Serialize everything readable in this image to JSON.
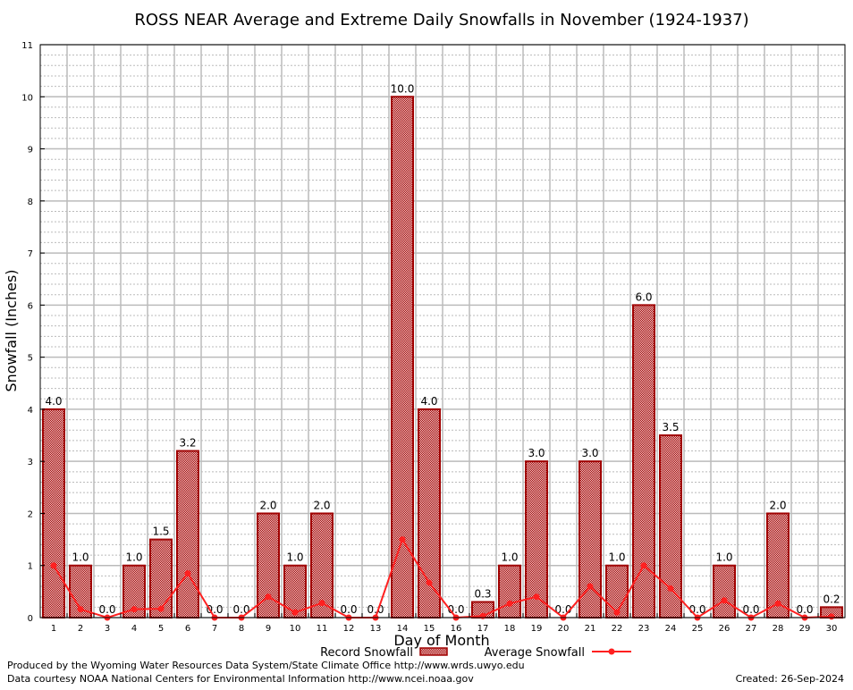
{
  "chart_data": {
    "type": "bar",
    "title": "ROSS NEAR Average and Extreme Daily Snowfalls in November (1924-1937)",
    "xlabel": "Day of Month",
    "ylabel": "Snowfall (Inches)",
    "ylim": [
      0,
      11
    ],
    "yticks": [
      "0",
      "1",
      "2",
      "3",
      "4",
      "5",
      "6",
      "7",
      "8",
      "9",
      "10",
      "11"
    ],
    "categories": [
      "1",
      "2",
      "3",
      "4",
      "5",
      "6",
      "7",
      "8",
      "9",
      "10",
      "11",
      "12",
      "13",
      "14",
      "15",
      "16",
      "17",
      "18",
      "19",
      "20",
      "21",
      "22",
      "23",
      "24",
      "25",
      "26",
      "27",
      "28",
      "29",
      "30"
    ],
    "grid": true,
    "legend_placement": "bottom",
    "series": [
      {
        "name": "Record Snowfall",
        "type": "bar",
        "color": "#a00000",
        "values": [
          4.0,
          1.0,
          0.0,
          1.0,
          1.5,
          3.2,
          0.0,
          0.0,
          2.0,
          1.0,
          2.0,
          0.0,
          0.0,
          10.0,
          4.0,
          0.0,
          0.3,
          1.0,
          3.0,
          0.0,
          3.0,
          1.0,
          6.0,
          3.5,
          0.0,
          1.0,
          0.0,
          2.0,
          0.0,
          0.2
        ],
        "labels": [
          "4.0",
          "1.0",
          "0.0",
          "1.0",
          "1.5",
          "3.2",
          "0.0",
          "0.0",
          "2.0",
          "1.0",
          "2.0",
          "0.0",
          "0.0",
          "10.0",
          "4.0",
          "0.0",
          "0.3",
          "1.0",
          "3.0",
          "0.0",
          "3.0",
          "1.0",
          "6.0",
          "3.5",
          "0.0",
          "1.0",
          "0.0",
          "2.0",
          "0.0",
          "0.2"
        ]
      },
      {
        "name": "Average Snowfall",
        "type": "line",
        "color": "#ff2020",
        "values": [
          1.0,
          0.16,
          0.0,
          0.16,
          0.17,
          0.85,
          0.0,
          0.0,
          0.4,
          0.1,
          0.28,
          0.0,
          0.0,
          1.5,
          0.67,
          0.0,
          0.03,
          0.27,
          0.4,
          0.0,
          0.6,
          0.1,
          1.0,
          0.56,
          0.0,
          0.33,
          0.0,
          0.27,
          0.0,
          0.02
        ]
      }
    ]
  },
  "footer": {
    "produced_by": "Produced by the Wyoming Water Resources Data System/State Climate Office http://www.wrds.uwyo.edu",
    "courtesy": "Data courtesy NOAA National Centers for Environmental Information http://www.ncei.noaa.gov",
    "created": "Created:  26-Sep-2024"
  }
}
